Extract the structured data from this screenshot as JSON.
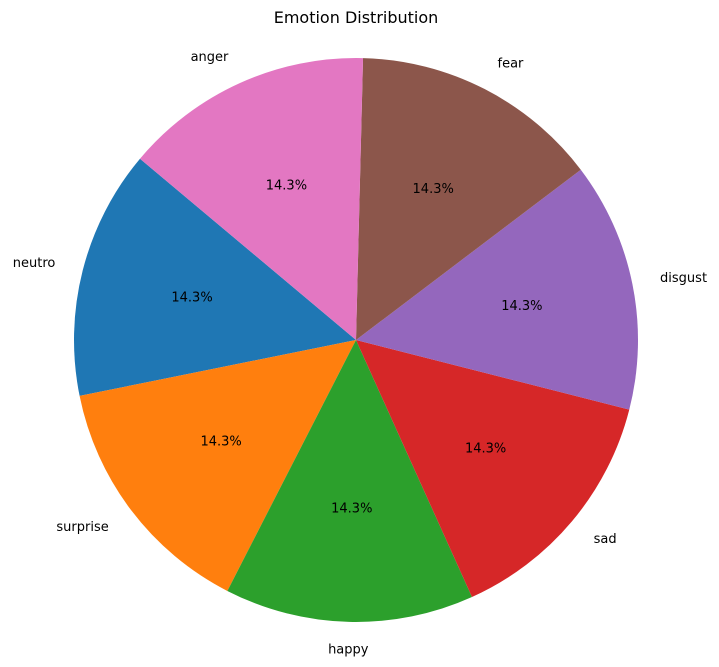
{
  "chart_data": {
    "type": "pie",
    "title": "Emotion Distribution",
    "slices": [
      {
        "label": "neutro",
        "value": 1,
        "pct_label": "14.3%",
        "color": "#1f77b4"
      },
      {
        "label": "surprise",
        "value": 1,
        "pct_label": "14.3%",
        "color": "#ff7f0e"
      },
      {
        "label": "happy",
        "value": 1,
        "pct_label": "14.3%",
        "color": "#2ca02c"
      },
      {
        "label": "sad",
        "value": 1,
        "pct_label": "14.3%",
        "color": "#d62728"
      },
      {
        "label": "disgust",
        "value": 1,
        "pct_label": "14.3%",
        "color": "#9467bd"
      },
      {
        "label": "fear",
        "value": 1,
        "pct_label": "14.3%",
        "color": "#8c564b"
      },
      {
        "label": "anger",
        "value": 1,
        "pct_label": "14.3%",
        "color": "#e377c2"
      }
    ],
    "start_angle_deg": 140,
    "direction": "counterclockwise"
  }
}
